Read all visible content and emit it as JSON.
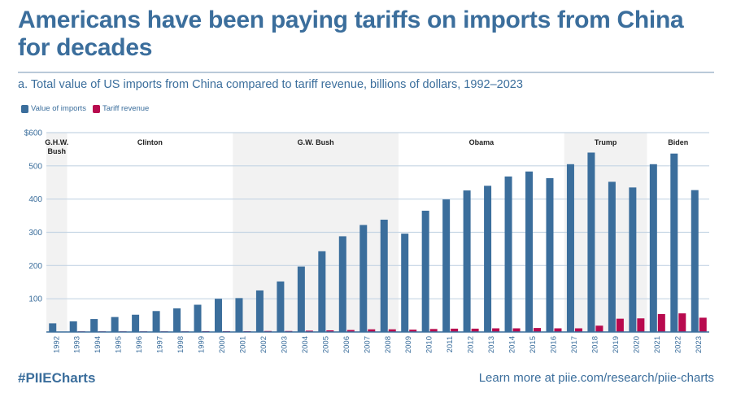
{
  "header": {
    "title": "Americans have been paying tariffs on imports from China for decades",
    "subtitle": "a. Total value of US imports from China compared to tariff revenue, billions of dollars, 1992–2023"
  },
  "footer": {
    "hashtag": "#PIIECharts",
    "link_text": "Learn more at piie.com/research/piie-charts"
  },
  "colors": {
    "imports": "#3b6e9c",
    "tariff": "#b80a4e",
    "shade": "#f2f2f2",
    "grid": "#c5d5e4",
    "text": "#3b6e9c"
  },
  "chart_data": {
    "type": "bar",
    "title": "Total value of US imports from China compared to tariff revenue, billions of dollars, 1992–2023",
    "xlabel": "",
    "ylabel": "billions of dollars",
    "ylim": [
      0,
      600
    ],
    "yticks": [
      0,
      100,
      200,
      300,
      400,
      500,
      600
    ],
    "ytick_labels": [
      "",
      "100",
      "200",
      "300",
      "400",
      "500",
      "$600"
    ],
    "grid": true,
    "legend_position": "top-left",
    "categories": [
      "1992",
      "1993",
      "1994",
      "1995",
      "1996",
      "1997",
      "1998",
      "1999",
      "2000",
      "2001",
      "2002",
      "2003",
      "2004",
      "2005",
      "2006",
      "2007",
      "2008",
      "2009",
      "2010",
      "2011",
      "2012",
      "2013",
      "2014",
      "2015",
      "2016",
      "2017",
      "2018",
      "2019",
      "2020",
      "2021",
      "2022",
      "2023"
    ],
    "series": [
      {
        "name": "Value of imports",
        "values": [
          26,
          32,
          39,
          45,
          52,
          63,
          71,
          82,
          100,
          102,
          125,
          152,
          197,
          243,
          288,
          322,
          338,
          296,
          365,
          399,
          426,
          440,
          468,
          483,
          463,
          505,
          540,
          452,
          435,
          505,
          537,
          427
        ]
      },
      {
        "name": "Tariff revenue",
        "values": [
          0.5,
          2,
          2,
          2,
          2,
          2,
          2,
          2.5,
          2.5,
          2.5,
          3,
          3,
          4,
          5,
          6,
          8,
          8,
          7,
          9,
          10,
          10,
          11,
          11,
          12,
          11,
          11,
          19,
          40,
          41,
          54,
          56,
          43
        ]
      }
    ],
    "administrations": [
      {
        "name": "G.H.W. Bush",
        "start": "1992",
        "end": "1992",
        "shaded": true
      },
      {
        "name": "Clinton",
        "start": "1993",
        "end": "2000",
        "shaded": false
      },
      {
        "name": "G.W. Bush",
        "start": "2001",
        "end": "2008",
        "shaded": true
      },
      {
        "name": "Obama",
        "start": "2009",
        "end": "2016",
        "shaded": false
      },
      {
        "name": "Trump",
        "start": "2017",
        "end": "2020",
        "shaded": true
      },
      {
        "name": "Biden",
        "start": "2021",
        "end": "2023",
        "shaded": false
      }
    ]
  }
}
